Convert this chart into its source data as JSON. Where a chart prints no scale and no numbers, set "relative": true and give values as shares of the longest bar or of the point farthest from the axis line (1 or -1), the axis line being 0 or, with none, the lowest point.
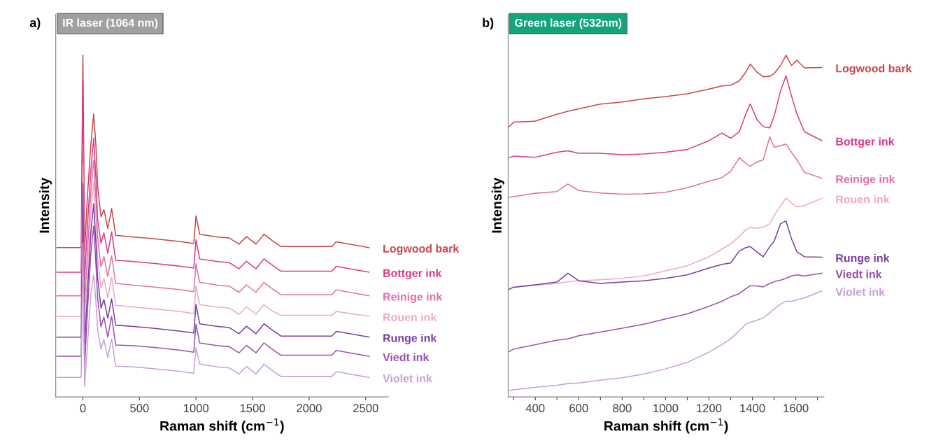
{
  "chart_data": [
    {
      "type": "line",
      "title": "IR laser (1064 nm)",
      "xlabel": "Raman shift (cm$^{−1}$)",
      "ylabel": "Intensity",
      "relative": true,
      "annotations": [
        "a)"
      ],
      "xlim": [
        -240,
        2700
      ],
      "xticks": [
        0,
        500,
        1000,
        1500,
        2000,
        2500
      ],
      "grid": false,
      "legend": false,
      "x": [
        -230,
        -15,
        0,
        15,
        40,
        70,
        95,
        115,
        130,
        160,
        186,
        220,
        254,
        290,
        450,
        620,
        852,
        980,
        1000,
        1032,
        1193,
        1294,
        1380,
        1446,
        1530,
        1601,
        1672,
        1750,
        2200,
        2240,
        2530
      ],
      "series": [
        {
          "name": "Logwood bark",
          "color": "#c8464a",
          "values": [
            0.437,
            0.437,
            1.0,
            0.427,
            0.587,
            0.737,
            0.828,
            0.737,
            0.617,
            0.527,
            0.548,
            0.493,
            0.551,
            0.473,
            0.468,
            0.463,
            0.455,
            0.449,
            0.53,
            0.476,
            0.468,
            0.465,
            0.447,
            0.469,
            0.447,
            0.476,
            0.458,
            0.44,
            0.44,
            0.454,
            0.437
          ]
        },
        {
          "name": "Bottger ink",
          "color": "#e0388a",
          "values": [
            0.365,
            0.365,
            0.925,
            0.345,
            0.5,
            0.66,
            0.757,
            0.64,
            0.52,
            0.45,
            0.48,
            0.42,
            0.483,
            0.4,
            0.396,
            0.391,
            0.383,
            0.377,
            0.46,
            0.404,
            0.396,
            0.393,
            0.375,
            0.397,
            0.375,
            0.404,
            0.386,
            0.368,
            0.368,
            0.382,
            0.365
          ]
        },
        {
          "name": "Reinige ink",
          "color": "#e070a8",
          "values": [
            0.296,
            0.296,
            0.74,
            0.27,
            0.42,
            0.6,
            0.692,
            0.58,
            0.47,
            0.38,
            0.411,
            0.352,
            0.413,
            0.332,
            0.327,
            0.322,
            0.314,
            0.308,
            0.39,
            0.335,
            0.327,
            0.324,
            0.306,
            0.328,
            0.306,
            0.335,
            0.317,
            0.299,
            0.299,
            0.313,
            0.296
          ]
        },
        {
          "name": "Rouen ink",
          "color": "#f0a8c8",
          "values": [
            0.236,
            0.236,
            0.678,
            0.21,
            0.36,
            0.54,
            0.627,
            0.52,
            0.41,
            0.32,
            0.347,
            0.29,
            0.35,
            0.268,
            0.263,
            0.258,
            0.25,
            0.244,
            0.325,
            0.27,
            0.263,
            0.26,
            0.242,
            0.264,
            0.242,
            0.27,
            0.252,
            0.239,
            0.239,
            0.25,
            0.236
          ]
        },
        {
          "name": "Runge ink",
          "color": "#7a3ea0",
          "values": [
            0.175,
            0.175,
            0.624,
            0.15,
            0.3,
            0.48,
            0.565,
            0.45,
            0.35,
            0.26,
            0.285,
            0.23,
            0.287,
            0.21,
            0.206,
            0.201,
            0.193,
            0.187,
            0.271,
            0.214,
            0.206,
            0.203,
            0.185,
            0.207,
            0.185,
            0.214,
            0.196,
            0.178,
            0.178,
            0.192,
            0.175
          ]
        },
        {
          "name": "Viedt ink",
          "color": "#9b4fb0",
          "values": [
            0.119,
            0.119,
            0.507,
            0.09,
            0.25,
            0.42,
            0.5,
            0.39,
            0.29,
            0.205,
            0.234,
            0.175,
            0.236,
            0.152,
            0.15,
            0.145,
            0.137,
            0.131,
            0.213,
            0.158,
            0.15,
            0.147,
            0.129,
            0.151,
            0.129,
            0.158,
            0.14,
            0.122,
            0.122,
            0.136,
            0.119
          ]
        },
        {
          "name": "Violet ink",
          "color": "#c8a0d8",
          "values": [
            0.057,
            0.057,
            0.45,
            0.031,
            0.15,
            0.3,
            0.357,
            0.28,
            0.2,
            0.14,
            0.168,
            0.115,
            0.17,
            0.09,
            0.088,
            0.083,
            0.075,
            0.069,
            0.144,
            0.096,
            0.088,
            0.085,
            0.067,
            0.089,
            0.067,
            0.096,
            0.078,
            0.06,
            0.06,
            0.074,
            0.057
          ]
        }
      ]
    },
    {
      "type": "line",
      "title": "Green laser (532nm)",
      "xlabel": "Raman shift (cm$^{−1}$)",
      "ylabel": "Intensity",
      "relative": true,
      "annotations": [
        "b)"
      ],
      "xlim": [
        275,
        1730
      ],
      "xticks": [
        {
          "value": 300,
          "label": null
        },
        400,
        {
          "value": 500,
          "label": null
        },
        600,
        {
          "value": 700,
          "label": null
        },
        800,
        {
          "value": 900,
          "label": null
        },
        1000,
        {
          "value": 1100,
          "label": null
        },
        1200,
        {
          "value": 1300,
          "label": null
        },
        1400,
        {
          "value": 1500,
          "label": null
        },
        1600,
        {
          "value": 1700,
          "label": null
        }
      ],
      "grid": false,
      "legend": false,
      "x": [
        280,
        300,
        400,
        500,
        550,
        600,
        700,
        800,
        900,
        1000,
        1100,
        1200,
        1260,
        1300,
        1340,
        1370,
        1390,
        1420,
        1450,
        1480,
        1500,
        1530,
        1555,
        1580,
        1605,
        1640,
        1720
      ],
      "series": [
        {
          "name": "Logwood bark",
          "color": "#c8464a",
          "values": [
            0.791,
            0.804,
            0.807,
            0.827,
            0.836,
            0.843,
            0.857,
            0.863,
            0.872,
            0.879,
            0.887,
            0.901,
            0.91,
            0.912,
            0.925,
            0.951,
            0.974,
            0.951,
            0.937,
            0.938,
            0.946,
            0.97,
            1.0,
            0.97,
            0.985,
            0.963,
            0.964
          ]
        },
        {
          "name": "Bottger ink",
          "color": "#e0388a",
          "values": [
            0.7,
            0.705,
            0.701,
            0.716,
            0.72,
            0.713,
            0.713,
            0.709,
            0.711,
            0.716,
            0.724,
            0.75,
            0.772,
            0.757,
            0.776,
            0.828,
            0.858,
            0.813,
            0.791,
            0.787,
            0.821,
            0.896,
            0.94,
            0.881,
            0.828,
            0.776,
            0.75
          ]
        },
        {
          "name": "Reinige ink",
          "color": "#e070a8",
          "values": [
            0.584,
            0.586,
            0.596,
            0.601,
            0.623,
            0.604,
            0.597,
            0.593,
            0.594,
            0.599,
            0.612,
            0.631,
            0.642,
            0.66,
            0.7,
            0.683,
            0.675,
            0.687,
            0.694,
            0.761,
            0.731,
            0.735,
            0.74,
            0.716,
            0.694,
            0.657,
            0.64
          ]
        },
        {
          "name": "Rouen ink",
          "color": "#f0a8c8",
          "values": [
            0.317,
            0.321,
            0.327,
            0.332,
            0.337,
            0.34,
            0.343,
            0.347,
            0.354,
            0.369,
            0.384,
            0.41,
            0.433,
            0.448,
            0.47,
            0.489,
            0.496,
            0.494,
            0.496,
            0.507,
            0.53,
            0.56,
            0.582,
            0.567,
            0.556,
            0.56,
            0.581
          ]
        },
        {
          "name": "Runge ink",
          "color": "#7a3ea0",
          "values": [
            0.315,
            0.321,
            0.328,
            0.336,
            0.362,
            0.34,
            0.332,
            0.336,
            0.34,
            0.347,
            0.357,
            0.377,
            0.388,
            0.392,
            0.427,
            0.437,
            0.44,
            0.425,
            0.41,
            0.44,
            0.455,
            0.507,
            0.515,
            0.463,
            0.425,
            0.41,
            0.409
          ]
        },
        {
          "name": "Viedt ink",
          "color": "#9b4fb0",
          "values": [
            0.133,
            0.14,
            0.153,
            0.166,
            0.17,
            0.179,
            0.19,
            0.201,
            0.213,
            0.228,
            0.243,
            0.265,
            0.28,
            0.293,
            0.302,
            0.317,
            0.325,
            0.325,
            0.322,
            0.332,
            0.337,
            0.342,
            0.347,
            0.354,
            0.357,
            0.354,
            0.362
          ]
        },
        {
          "name": "Violet ink",
          "color": "#c8a0d8",
          "values": [
            0.019,
            0.021,
            0.028,
            0.034,
            0.039,
            0.041,
            0.049,
            0.056,
            0.067,
            0.082,
            0.101,
            0.131,
            0.153,
            0.17,
            0.194,
            0.213,
            0.218,
            0.224,
            0.231,
            0.246,
            0.257,
            0.272,
            0.28,
            0.28,
            0.284,
            0.29,
            0.31
          ]
        }
      ]
    }
  ]
}
